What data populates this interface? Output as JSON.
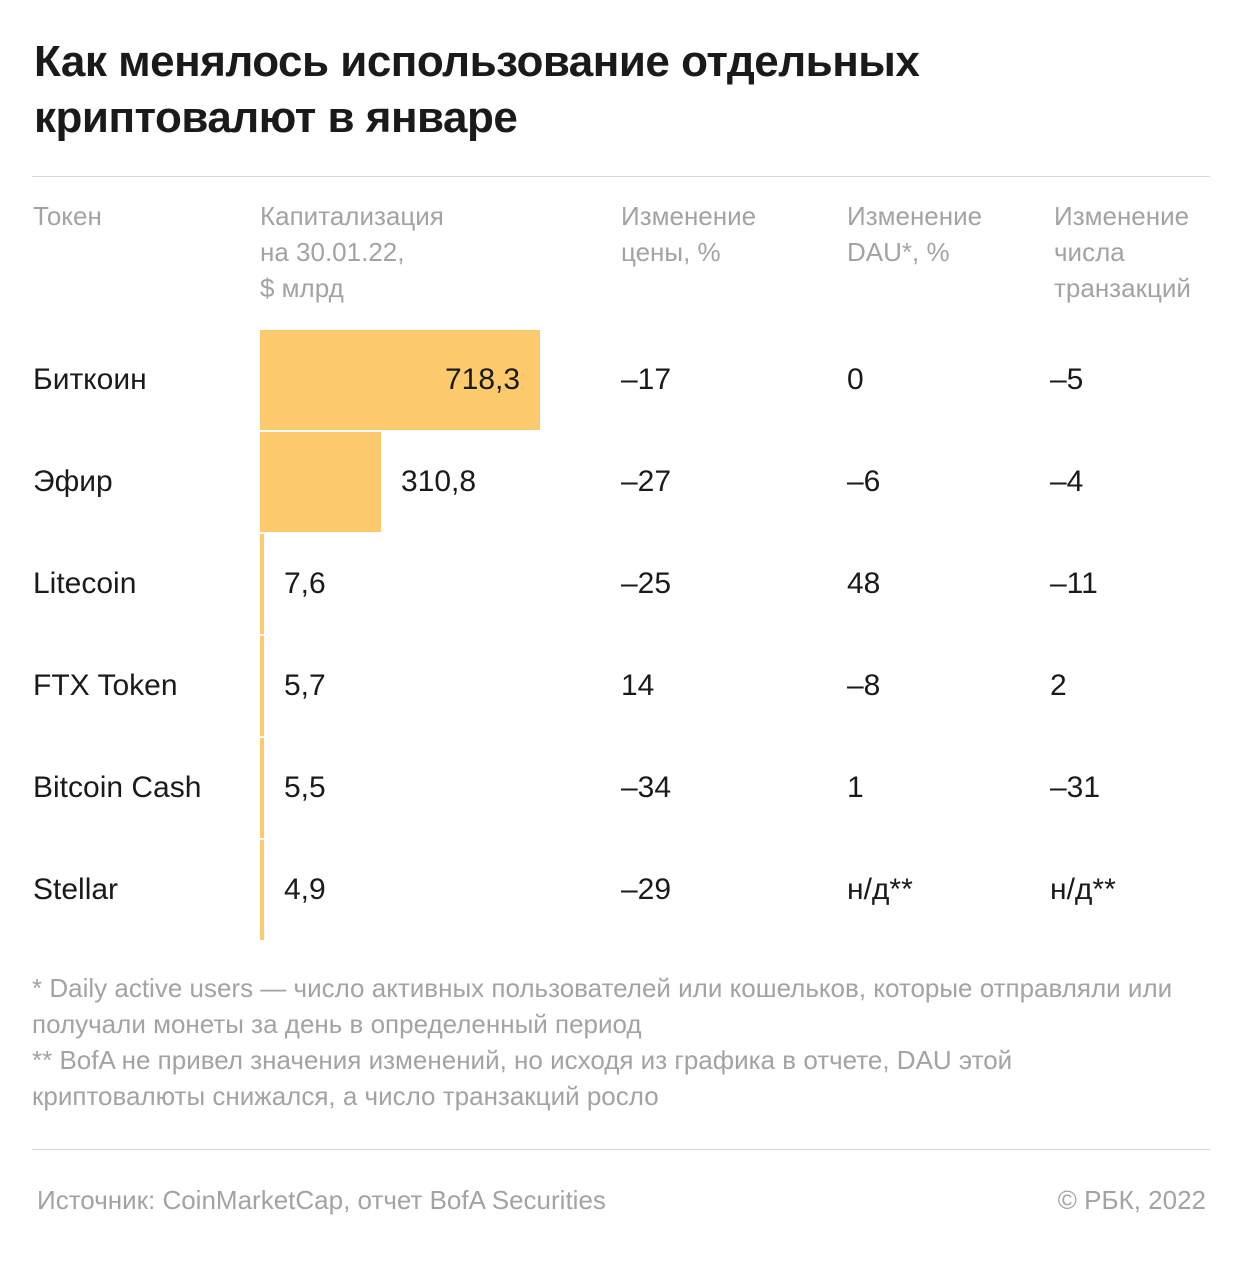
{
  "title": "Как менялось использование отдельных криптовалют в январе",
  "headers": {
    "token": "Токен",
    "cap": "Капитализация\nна 30.01.22,\n$ млрд",
    "price": "Изменение\nцены, %",
    "dau": "Изменение\nDAU*, %",
    "tx": "Изменение\nчисла\nтранзакций"
  },
  "chart_data": {
    "type": "table",
    "bar_color": "#fdcb6e",
    "columns": [
      "Токен",
      "Капитализация на 30.01.22, $ млрд",
      "Изменение цены, %",
      "Изменение DAU*, %",
      "Изменение числа транзакций"
    ],
    "rows": [
      {
        "token": "Биткоин",
        "cap": 718.3,
        "cap_label": "718,3",
        "price": "–17",
        "dau": "0",
        "tx": "–5"
      },
      {
        "token": "Эфир",
        "cap": 310.8,
        "cap_label": "310,8",
        "price": "–27",
        "dau": "–6",
        "tx": "–4"
      },
      {
        "token": "Litecoin",
        "cap": 7.6,
        "cap_label": "7,6",
        "price": "–25",
        "dau": "48",
        "tx": "–11"
      },
      {
        "token": "FTX Token",
        "cap": 5.7,
        "cap_label": "5,7",
        "price": "14",
        "dau": "–8",
        "tx": "2"
      },
      {
        "token": "Bitcoin Cash",
        "cap": 5.5,
        "cap_label": "5,5",
        "price": "–34",
        "dau": "1",
        "tx": "–31"
      },
      {
        "token": "Stellar",
        "cap": 4.9,
        "cap_label": "4,9",
        "price": "–29",
        "dau": "н/д**",
        "tx": "н/д**"
      }
    ]
  },
  "notes": {
    "note1": "* Daily active users — число активных пользователей или кошельков, которые отправляли или получали монеты за день в определенный период",
    "note2": "** BofA не привел значения изменений, но исходя из графика в отчете, DAU этой криптовалюты снижался, а число транзакций росло"
  },
  "footer": {
    "source": "Источник:  CoinMarketCap, отчет BofA Securities",
    "copyright": "©  РБК, 2022"
  }
}
